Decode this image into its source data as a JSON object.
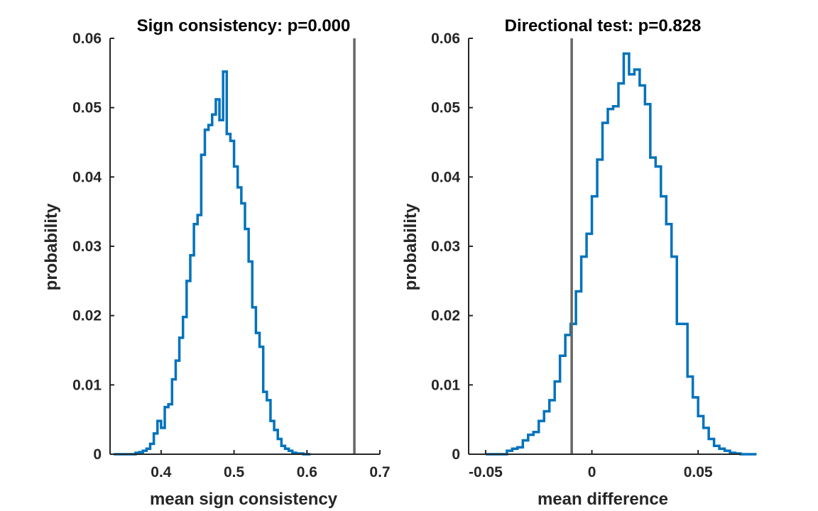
{
  "chart_data": [
    {
      "type": "histogram",
      "title": "Sign consistency: p=0.000",
      "xlabel": "mean sign consistency",
      "ylabel": "probability",
      "xlim": [
        0.33,
        0.7
      ],
      "ylim": [
        0,
        0.06
      ],
      "xticks": [
        0.4,
        0.5,
        0.6,
        0.7
      ],
      "xtick_labels": [
        "0.4",
        "0.5",
        "0.6",
        "0.7"
      ],
      "yticks": [
        0,
        0.01,
        0.02,
        0.03,
        0.04,
        0.05,
        0.06
      ],
      "ytick_labels": [
        "0",
        "0.01",
        "0.02",
        "0.03",
        "0.04",
        "0.05",
        "0.06"
      ],
      "bin_start": 0.335,
      "bin_width": 0.005,
      "values": [
        0,
        0,
        0,
        0,
        0,
        0,
        0.0002,
        0.0003,
        0.0005,
        0.0008,
        0.0015,
        0.003,
        0.0048,
        0.0038,
        0.0068,
        0.0072,
        0.0108,
        0.0135,
        0.0168,
        0.0198,
        0.025,
        0.0287,
        0.0332,
        0.0345,
        0.0432,
        0.0468,
        0.0475,
        0.049,
        0.0512,
        0.0482,
        0.0552,
        0.0462,
        0.0452,
        0.0415,
        0.0385,
        0.0362,
        0.0325,
        0.0278,
        0.0212,
        0.0175,
        0.0155,
        0.009,
        0.0078,
        0.0048,
        0.0035,
        0.0022,
        0.0012,
        0.0008,
        0.0005,
        0.0002,
        0.0001,
        0.0001,
        0,
        0
      ],
      "vline": 0.665,
      "colors": {
        "series": "#0072BD",
        "vline": "#666666",
        "axis": "#262626"
      }
    },
    {
      "type": "histogram",
      "title": "Directional test: p=0.828",
      "xlabel": "mean difference",
      "ylabel": "probability",
      "xlim": [
        -0.058,
        0.07
      ],
      "ylim": [
        0,
        0.06
      ],
      "xticks": [
        -0.05,
        0,
        0.05
      ],
      "xtick_labels": [
        "-0.05",
        "0",
        "0.05"
      ],
      "yticks": [
        0,
        0.01,
        0.02,
        0.03,
        0.04,
        0.05,
        0.06
      ],
      "ytick_labels": [
        "0",
        "0.01",
        "0.02",
        "0.03",
        "0.04",
        "0.05",
        "0.06"
      ],
      "bin_start": -0.05,
      "bin_width": 0.0025,
      "values": [
        0,
        0,
        0,
        0,
        0.0005,
        0.0008,
        0.001,
        0.002,
        0.0028,
        0.0032,
        0.0048,
        0.0062,
        0.0078,
        0.0105,
        0.0142,
        0.0172,
        0.0188,
        0.0235,
        0.0285,
        0.0318,
        0.0372,
        0.0425,
        0.0478,
        0.0498,
        0.0502,
        0.0535,
        0.0578,
        0.0548,
        0.0555,
        0.0532,
        0.0505,
        0.0428,
        0.0415,
        0.0372,
        0.0332,
        0.0285,
        0.0188,
        0.0188,
        0.0112,
        0.0082,
        0.0055,
        0.0038,
        0.0022,
        0.0012,
        0.0008,
        0.0005,
        0.0002,
        0.0001,
        0,
        0,
        0
      ],
      "vline": -0.0095,
      "colors": {
        "series": "#0072BD",
        "vline": "#666666",
        "axis": "#262626"
      }
    }
  ]
}
